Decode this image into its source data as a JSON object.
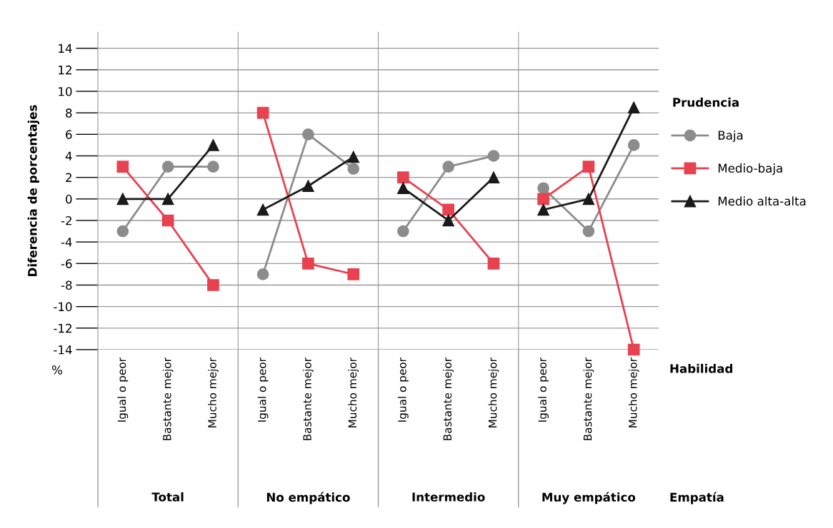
{
  "chart_data": [
    {
      "type": "line",
      "xlabel": "Total",
      "ylabel": "Diferencia de porcentajes",
      "categories": [
        "Igual o peor",
        "Bastante mejor",
        "Mucho mejor"
      ],
      "ylim": [
        -14,
        15.5
      ],
      "yticks": [
        14,
        12,
        10,
        8,
        6,
        4,
        2,
        0,
        -2,
        -4,
        -6,
        -8,
        -10,
        -12,
        -14
      ],
      "grid": "y",
      "annotations": [
        "%"
      ],
      "series": [
        {
          "color": "#8c8c8c",
          "marker": "circle",
          "values": [
            -3,
            3,
            3
          ]
        },
        {
          "color": "#e8414f",
          "marker": "square",
          "values": [
            3,
            -2,
            -8
          ]
        },
        {
          "color": "#1a1a1a",
          "marker": "triangle",
          "values": [
            0,
            0,
            5
          ]
        }
      ]
    },
    {
      "type": "line",
      "xlabel": "No empático",
      "categories": [
        "Igual o peor",
        "Bastante mejor",
        "Mucho mejor"
      ],
      "ylim": [
        -14,
        15.5
      ],
      "yticks": [
        14,
        12,
        10,
        8,
        6,
        4,
        2,
        0,
        -2,
        -4,
        -6,
        -8,
        -10,
        -12,
        -14
      ],
      "grid": "y",
      "tick_labels": "x",
      "series": [
        {
          "color": "#8c8c8c",
          "marker": "circle",
          "values": [
            -7,
            6,
            2.8
          ]
        },
        {
          "color": "#e8414f",
          "marker": "square",
          "values": [
            8,
            -6,
            -7
          ]
        },
        {
          "color": "#1a1a1a",
          "marker": "triangle",
          "values": [
            -1,
            1.2,
            3.9
          ]
        }
      ]
    },
    {
      "type": "line",
      "xlabel": "Intermedio",
      "categories": [
        "Igual o peor",
        "Bastante mejor",
        "Mucho mejor"
      ],
      "ylim": [
        -14,
        15.5
      ],
      "yticks": [
        14,
        12,
        10,
        8,
        6,
        4,
        2,
        0,
        -2,
        -4,
        -6,
        -8,
        -10,
        -12,
        -14
      ],
      "grid": "y",
      "tick_labels": "x",
      "series": [
        {
          "color": "#8c8c8c",
          "marker": "circle",
          "values": [
            -3,
            3,
            4
          ]
        },
        {
          "color": "#e8414f",
          "marker": "square",
          "values": [
            2,
            -1,
            -6
          ]
        },
        {
          "color": "#1a1a1a",
          "marker": "triangle",
          "values": [
            1,
            -2,
            2
          ]
        }
      ]
    },
    {
      "type": "line",
      "xlabel": "Muy empático",
      "categories": [
        "Igual o peor",
        "Bastante mejor",
        "Mucho mejor"
      ],
      "ylim": [
        -14,
        15.5
      ],
      "yticks": [
        14,
        12,
        10,
        8,
        6,
        4,
        2,
        0,
        -2,
        -4,
        -6,
        -8,
        -10,
        -12,
        -14
      ],
      "grid": "y",
      "tick_labels": "x",
      "legend": "right",
      "legend_title": "Prudencia",
      "annotations": [
        "Habilidad",
        "Empatía"
      ],
      "series": [
        {
          "name": "Baja",
          "color": "#8c8c8c",
          "marker": "circle",
          "values": [
            1,
            -3,
            5
          ]
        },
        {
          "name": "Medio-baja",
          "color": "#e8414f",
          "marker": "square",
          "values": [
            0,
            3,
            -14
          ]
        },
        {
          "name": "Medio alta-alta",
          "color": "#1a1a1a",
          "marker": "triangle",
          "values": [
            -1,
            0,
            8.5
          ]
        }
      ]
    }
  ]
}
